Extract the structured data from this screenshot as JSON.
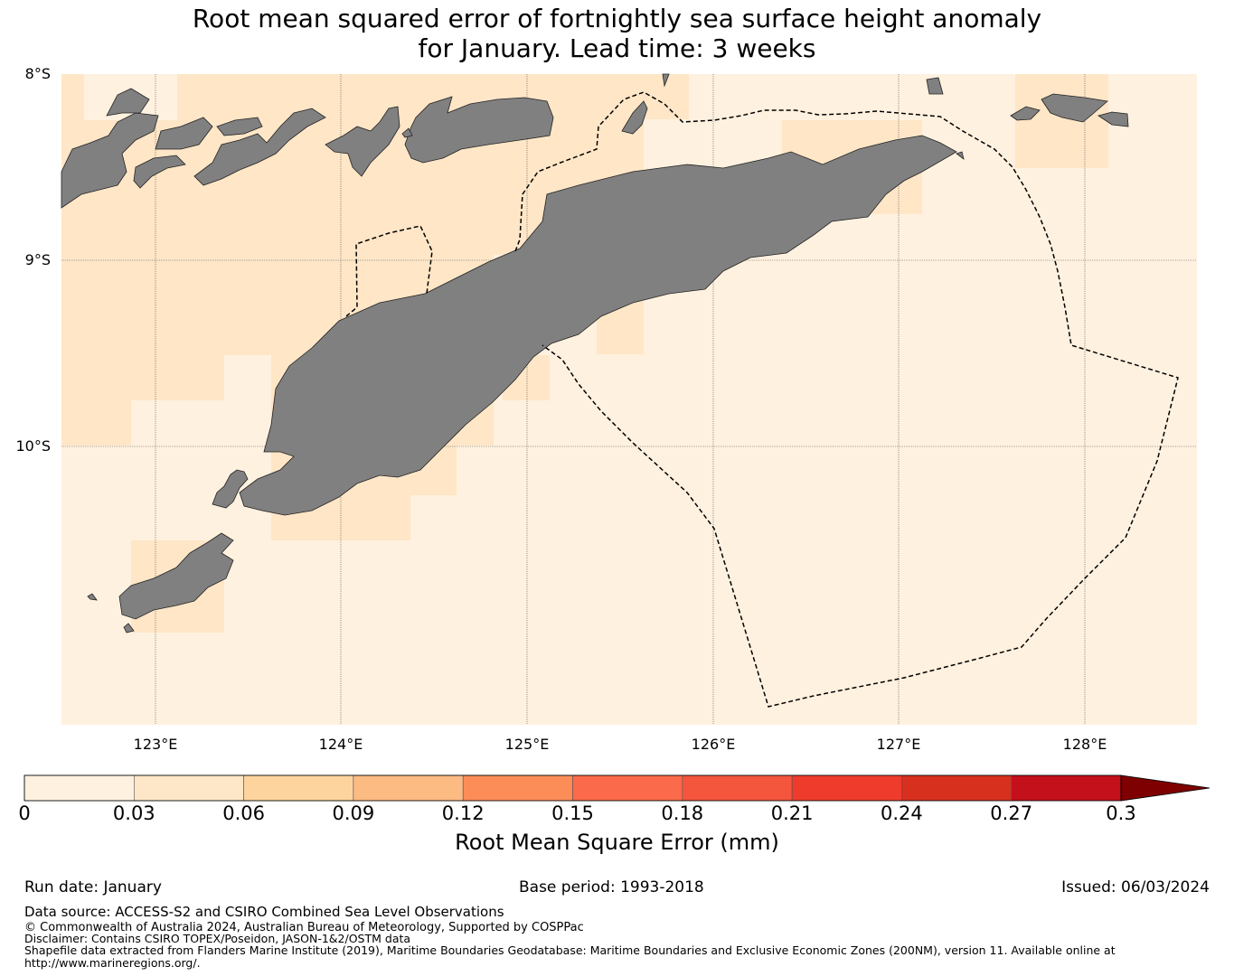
{
  "title": {
    "line1": "Root mean squared error of fortnightly sea surface height anomaly",
    "line2": "for January. Lead time: 3 weeks"
  },
  "map": {
    "lat_labels": [
      "8°S",
      "9°S",
      "10°S"
    ],
    "lon_labels": [
      "123°E",
      "124°E",
      "125°E",
      "126°E",
      "127°E",
      "128°E"
    ],
    "colors": {
      "background_ocean": "#fff1df",
      "shade_low": "#fee6c7",
      "shade_mid": "#fde2bd",
      "land": "#808080",
      "eez_line": "#000000",
      "grid": "#555555"
    }
  },
  "colorbar": {
    "ticks": [
      "0",
      "0.03",
      "0.06",
      "0.09",
      "0.12",
      "0.15",
      "0.18",
      "0.21",
      "0.24",
      "0.27",
      "0.3"
    ],
    "colors": [
      "#fff1df",
      "#fee6c8",
      "#fdd49e",
      "#fdbb84",
      "#fc8d59",
      "#fb6a4a",
      "#f4553d",
      "#ef3b2c",
      "#d7301f",
      "#c4101b",
      "#b30000"
    ],
    "extend_color": "#7f0000",
    "label": "Root Mean Square Error (mm)"
  },
  "footer": {
    "run_date": "Run date: January",
    "base_period": "Base period: 1993-2018",
    "issued": "Issued: 06/03/2024",
    "data_source": "Data source: ACCESS-S2 and CSIRO Combined Sea Level Observations",
    "copyright": "© Commonwealth of Australia 2024, Australian Bureau of Meteorology, Supported by COSPPac",
    "disclaimer": "Disclaimer: Contains CSIRO TOPEX/Poseidon, JASON-1&2/OSTM data",
    "shapefile_line1": "Shapefile data extracted from Flanders Marine Institute (2019), Maritime Boundaries Geodatabase: Maritime Boundaries and Exclusive Economic Zones (200NM), version 11. Available online at",
    "shapefile_line2": "http://www.marineregions.org/."
  }
}
